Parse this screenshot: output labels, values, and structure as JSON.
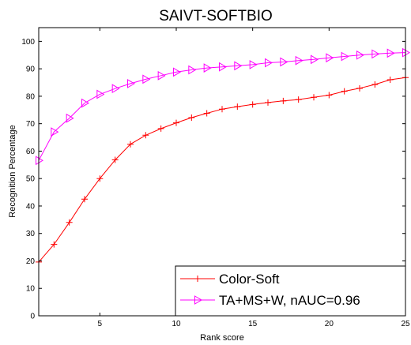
{
  "chart_data": {
    "type": "line",
    "title": "SAIVT-SOFTBIO",
    "xlabel": "Rank score",
    "ylabel": "Recognition Percentage",
    "xlim": [
      1,
      25
    ],
    "ylim": [
      0,
      105
    ],
    "xticks": [
      5,
      10,
      15,
      20,
      25
    ],
    "yticks": [
      0,
      10,
      20,
      30,
      40,
      50,
      60,
      70,
      80,
      90,
      100
    ],
    "grid": false,
    "legend_position": "bottom-right",
    "x": [
      1,
      2,
      3,
      4,
      5,
      6,
      7,
      8,
      9,
      10,
      11,
      12,
      13,
      14,
      15,
      16,
      17,
      18,
      19,
      20,
      21,
      22,
      23,
      24,
      25
    ],
    "series": [
      {
        "name": "Color-Soft",
        "color": "#ff0000",
        "marker": "plus",
        "values": [
          19.6,
          26,
          34,
          42.5,
          50,
          56.8,
          62.5,
          65.8,
          68.2,
          70.3,
          72.2,
          73.8,
          75.3,
          76.2,
          77,
          77.7,
          78.3,
          78.8,
          79.6,
          80.4,
          81.8,
          82.9,
          84.3,
          86,
          86.8
        ]
      },
      {
        "name": "TA+MS+W,  nAUC=0.96",
        "color": "#ff00ff",
        "marker": "triangle-right",
        "values": [
          56.6,
          67,
          72,
          77.5,
          80.7,
          82.8,
          84.6,
          86.2,
          87.5,
          88.8,
          89.6,
          90.3,
          90.7,
          91.1,
          91.5,
          92.2,
          92.5,
          93,
          93.4,
          94,
          94.5,
          95,
          95.4,
          95.7,
          95.9
        ]
      }
    ]
  }
}
